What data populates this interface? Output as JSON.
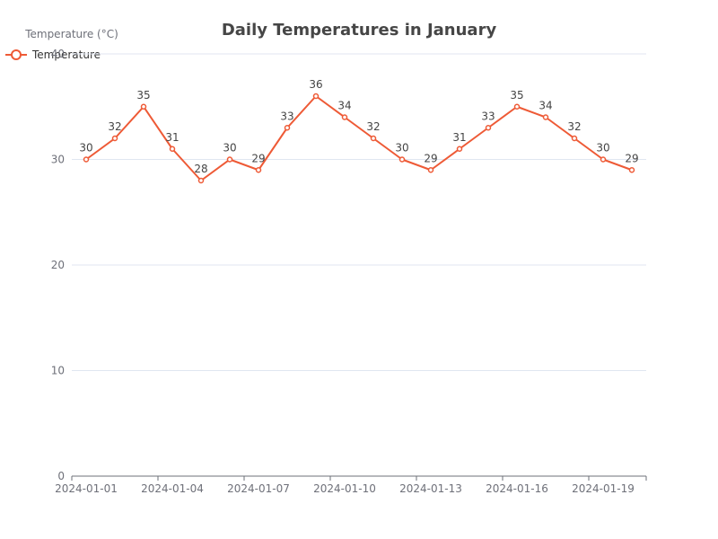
{
  "chart_data": {
    "type": "line",
    "title": "Daily Temperatures in January",
    "ylabel": "Temperature (°C)",
    "xlabel": "",
    "legend": [
      "Temperature"
    ],
    "legend_position": "top-left",
    "grid": true,
    "ylim": [
      0,
      40
    ],
    "y_ticks": [
      0,
      10,
      20,
      30,
      40
    ],
    "x": [
      "2024-01-01",
      "2024-01-02",
      "2024-01-03",
      "2024-01-04",
      "2024-01-05",
      "2024-01-06",
      "2024-01-07",
      "2024-01-08",
      "2024-01-09",
      "2024-01-10",
      "2024-01-11",
      "2024-01-12",
      "2024-01-13",
      "2024-01-14",
      "2024-01-15",
      "2024-01-16",
      "2024-01-17",
      "2024-01-18",
      "2024-01-19",
      "2024-01-20"
    ],
    "x_tick_labels": [
      "2024-01-01",
      "2024-01-04",
      "2024-01-07",
      "2024-01-10",
      "2024-01-13",
      "2024-01-16",
      "2024-01-19"
    ],
    "series": [
      {
        "name": "Temperature",
        "color": "#ee5a36",
        "values": [
          30,
          32,
          35,
          31,
          28,
          30,
          29,
          33,
          36,
          34,
          32,
          30,
          29,
          31,
          33,
          35,
          34,
          32,
          30,
          29
        ]
      }
    ]
  }
}
